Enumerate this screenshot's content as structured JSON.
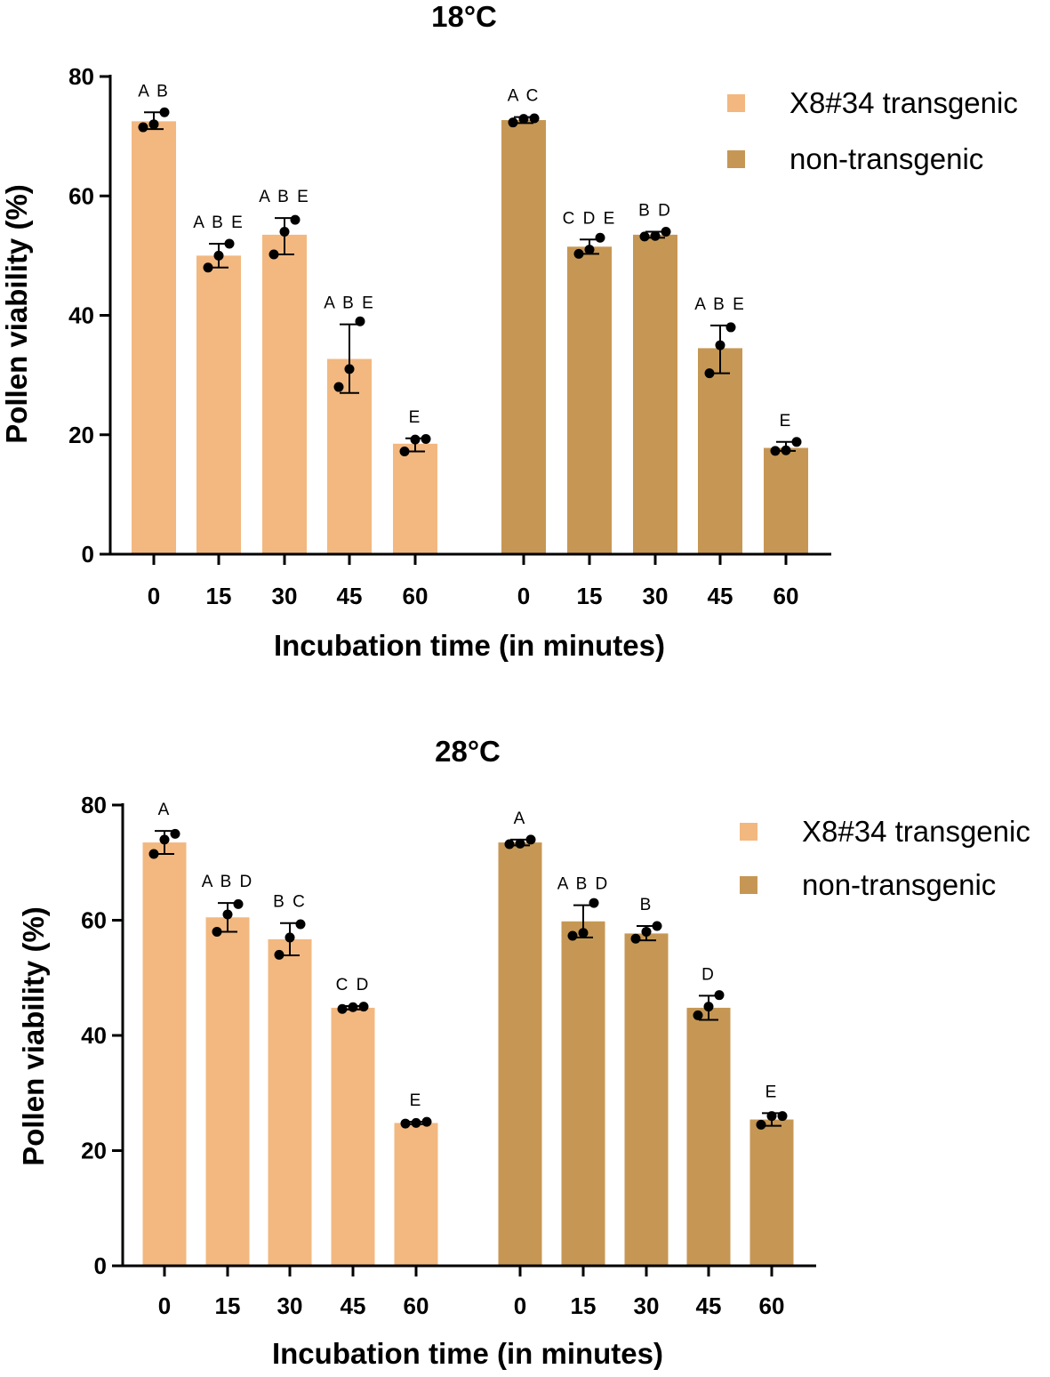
{
  "chart_data": [
    {
      "type": "bar",
      "title": "18°C",
      "xlabel": "Incubation time (in minutes)",
      "ylabel": "Pollen viability (%)",
      "ylim": [
        0,
        80
      ],
      "yticks": [
        "0",
        "20",
        "40",
        "60",
        "80"
      ],
      "categories": [
        "0",
        "15",
        "30",
        "45",
        "60"
      ],
      "legend_position": "top-right",
      "series": [
        {
          "name": "X8#34 transgenic",
          "color": "#F2B880",
          "values": [
            72.5,
            50.0,
            53.5,
            32.7,
            18.5
          ],
          "err_low": [
            71.2,
            48.0,
            50.2,
            27.0,
            17.2
          ],
          "err_high": [
            74.0,
            52.0,
            56.3,
            38.5,
            19.4
          ],
          "points": [
            [
              71.5,
              72.0,
              74.0
            ],
            [
              48.0,
              50.0,
              52.0
            ],
            [
              50.2,
              54.0,
              56.0
            ],
            [
              28.0,
              31.0,
              39.0
            ],
            [
              17.2,
              19.2,
              19.3
            ]
          ],
          "letters": [
            "A B",
            "A B E",
            "A B E",
            "A B E",
            "E"
          ]
        },
        {
          "name": "non-transgenic",
          "color": "#C69754",
          "values": [
            72.7,
            51.5,
            53.5,
            34.5,
            17.8
          ],
          "err_low": [
            72.2,
            50.3,
            53.0,
            30.3,
            17.3
          ],
          "err_high": [
            73.2,
            52.7,
            54.0,
            38.3,
            18.8
          ],
          "points": [
            [
              72.3,
              72.9,
              73.0
            ],
            [
              50.3,
              51.0,
              53.0
            ],
            [
              53.2,
              53.3,
              54.0
            ],
            [
              30.3,
              35.0,
              38.0
            ],
            [
              17.3,
              17.4,
              18.8
            ]
          ],
          "letters": [
            "A C",
            "C D E",
            "B D",
            "A B E",
            "E"
          ]
        }
      ]
    },
    {
      "type": "bar",
      "title": "28°C",
      "xlabel": "Incubation time (in minutes)",
      "ylabel": "Pollen viability (%)",
      "ylim": [
        0,
        80
      ],
      "yticks": [
        "0",
        "20",
        "40",
        "60",
        "80"
      ],
      "categories": [
        "0",
        "15",
        "30",
        "45",
        "60"
      ],
      "legend_position": "top-right",
      "series": [
        {
          "name": "X8#34 transgenic",
          "color": "#F2B880",
          "values": [
            73.5,
            60.5,
            56.7,
            44.8,
            24.8
          ],
          "err_low": [
            71.5,
            58.0,
            53.9,
            44.5,
            24.6
          ],
          "err_high": [
            75.5,
            63.0,
            59.5,
            45.1,
            25.0
          ],
          "points": [
            [
              71.5,
              74.0,
              75.0
            ],
            [
              58.0,
              61.0,
              62.8
            ],
            [
              54.0,
              57.0,
              59.3
            ],
            [
              44.6,
              44.9,
              45.0
            ],
            [
              24.7,
              24.8,
              25.0
            ]
          ],
          "letters": [
            "A",
            "A B D",
            "B C",
            "C D",
            "E"
          ]
        },
        {
          "name": "non-transgenic",
          "color": "#C69754",
          "values": [
            73.5,
            59.8,
            57.7,
            44.8,
            25.4
          ],
          "err_low": [
            73.0,
            57.0,
            56.5,
            42.7,
            24.3
          ],
          "err_high": [
            74.0,
            62.6,
            59.0,
            46.9,
            26.5
          ],
          "points": [
            [
              73.2,
              73.3,
              74.0
            ],
            [
              57.3,
              57.8,
              63.0
            ],
            [
              56.8,
              58.0,
              59.0
            ],
            [
              43.5,
              45.0,
              47.0
            ],
            [
              24.5,
              26.0,
              26.0
            ]
          ],
          "letters": [
            "A",
            "A B D",
            "B",
            "D",
            "E"
          ]
        }
      ]
    }
  ]
}
